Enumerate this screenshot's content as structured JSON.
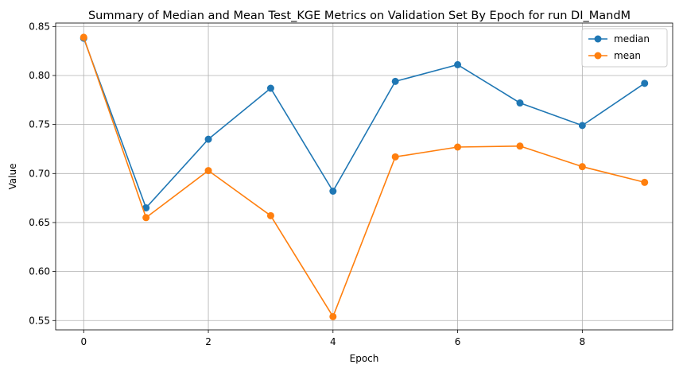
{
  "chart_data": {
    "type": "line",
    "title": "Summary of Median and Mean Test_KGE Metrics on Validation Set By Epoch for run DI_MandM",
    "xlabel": "Epoch",
    "ylabel": "Value",
    "x": [
      0,
      1,
      2,
      3,
      4,
      5,
      6,
      7,
      8,
      9
    ],
    "xlim": [
      -0.45,
      9.45
    ],
    "ylim": [
      0.5405,
      0.8535
    ],
    "xticks": [
      0,
      2,
      4,
      6,
      8
    ],
    "xtick_labels": [
      "0",
      "2",
      "4",
      "6",
      "8"
    ],
    "yticks": [
      0.55,
      0.6,
      0.65,
      0.7,
      0.75,
      0.8,
      0.85
    ],
    "ytick_labels": [
      "0.55",
      "0.60",
      "0.65",
      "0.70",
      "0.75",
      "0.80",
      "0.85"
    ],
    "grid": true,
    "legend_position": "top-right",
    "series": [
      {
        "name": "median",
        "color": "#1f77b4",
        "values": [
          0.838,
          0.665,
          0.735,
          0.787,
          0.682,
          0.794,
          0.811,
          0.772,
          0.749,
          0.792
        ]
      },
      {
        "name": "mean",
        "color": "#ff7f0e",
        "values": [
          0.839,
          0.655,
          0.703,
          0.657,
          0.554,
          0.717,
          0.727,
          0.728,
          0.707,
          0.691
        ]
      }
    ]
  }
}
